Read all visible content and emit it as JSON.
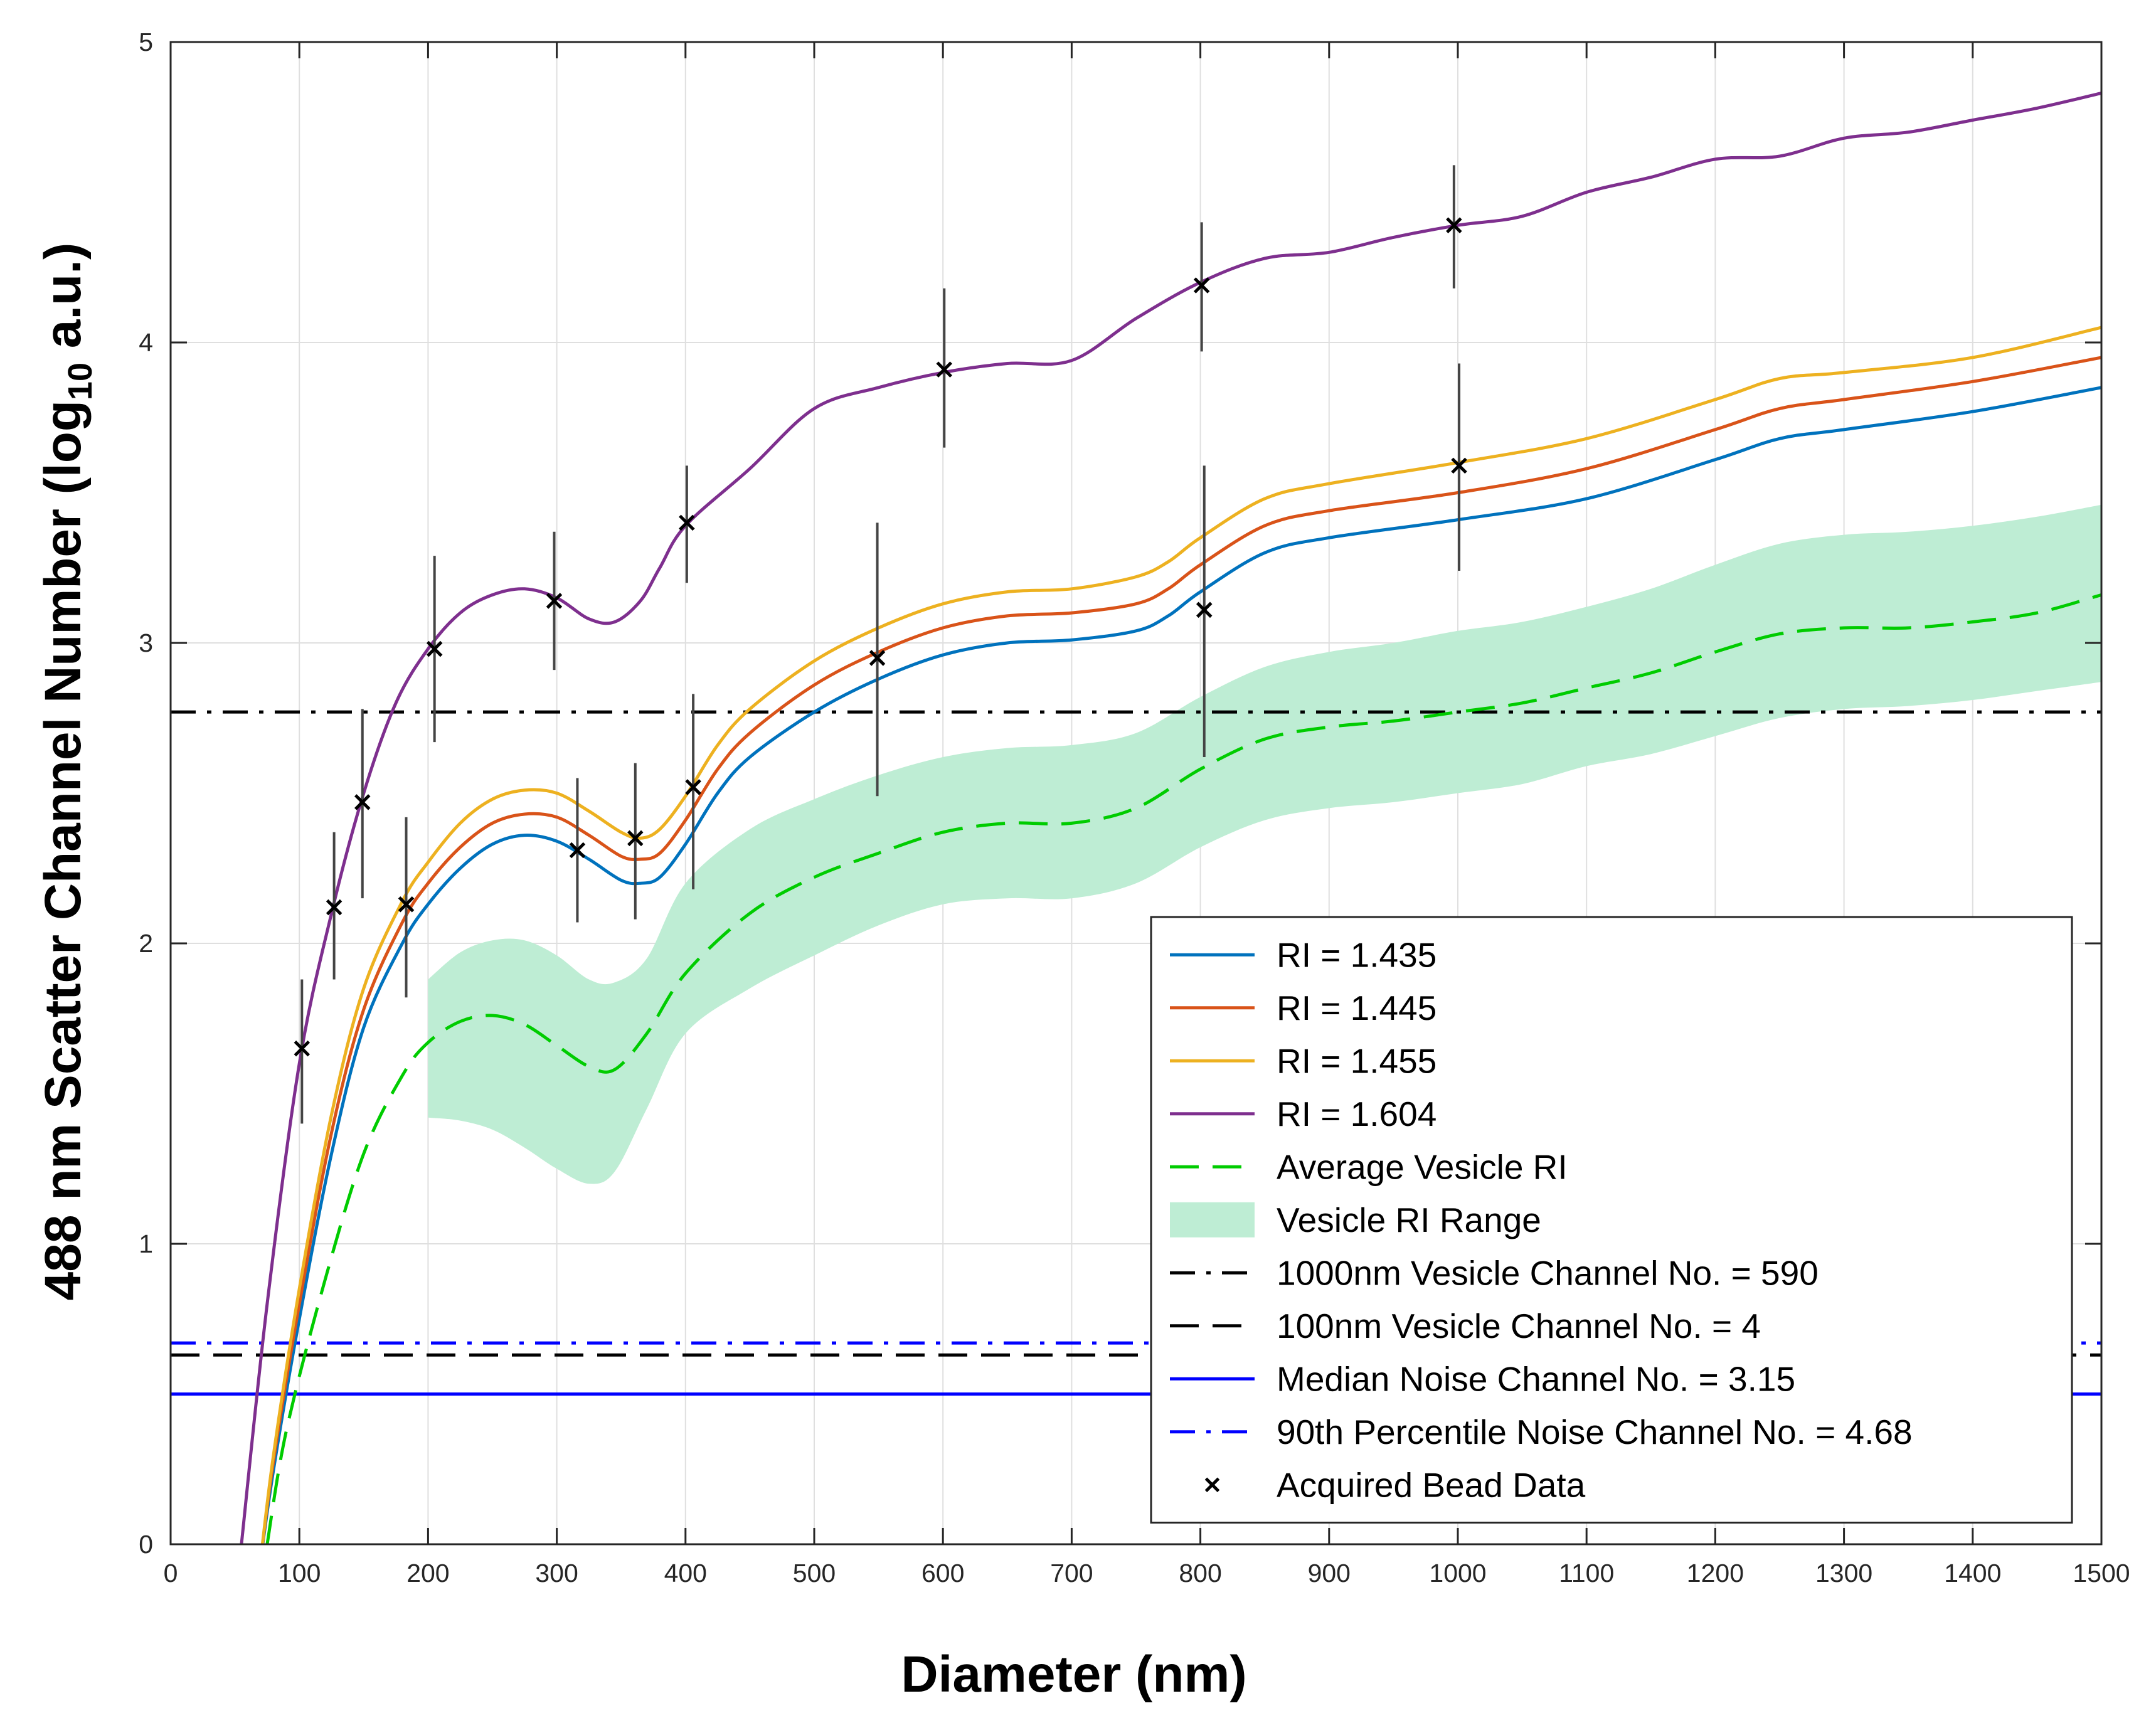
{
  "chart_data": {
    "type": "line",
    "title": "",
    "xlabel": "Diameter (nm)",
    "ylabel_prefix": "488 nm Scatter Channel Number (log",
    "ylabel_sub": "10",
    "ylabel_suffix": " a.u.)",
    "xlim": [
      0,
      1500
    ],
    "ylim": [
      0,
      5
    ],
    "xticks": [
      0,
      100,
      200,
      300,
      400,
      500,
      600,
      700,
      800,
      900,
      1000,
      1100,
      1200,
      1300,
      1400,
      1500
    ],
    "yticks": [
      0,
      1,
      2,
      3,
      4,
      5
    ],
    "grid": true,
    "legend_position": "bottom-right",
    "series": [
      {
        "name": "RI = 1.435",
        "color": "#0072BD",
        "style": "solid",
        "x": [
          70,
          80,
          100,
          125,
          150,
          180,
          200,
          225,
          250,
          275,
          300,
          325,
          350,
          365,
          380,
          400,
          425,
          450,
          500,
          550,
          600,
          650,
          700,
          750,
          775,
          800,
          850,
          900,
          1000,
          1100,
          1200,
          1250,
          1300,
          1400,
          1500
        ],
        "y": [
          -0.05,
          0.25,
          0.75,
          1.3,
          1.72,
          2.0,
          2.13,
          2.25,
          2.33,
          2.36,
          2.34,
          2.28,
          2.21,
          2.2,
          2.22,
          2.33,
          2.5,
          2.62,
          2.77,
          2.88,
          2.96,
          3.0,
          3.01,
          3.04,
          3.09,
          3.17,
          3.3,
          3.35,
          3.41,
          3.48,
          3.61,
          3.68,
          3.71,
          3.77,
          3.85
        ]
      },
      {
        "name": "RI = 1.445",
        "color": "#D95319",
        "style": "solid",
        "x": [
          70,
          80,
          100,
          125,
          150,
          180,
          200,
          225,
          250,
          275,
          300,
          325,
          350,
          365,
          380,
          400,
          425,
          450,
          500,
          550,
          600,
          650,
          700,
          750,
          775,
          800,
          850,
          900,
          1000,
          1100,
          1200,
          1250,
          1300,
          1400,
          1500
        ],
        "y": [
          -0.05,
          0.28,
          0.8,
          1.37,
          1.78,
          2.07,
          2.2,
          2.32,
          2.4,
          2.43,
          2.42,
          2.36,
          2.29,
          2.28,
          2.3,
          2.41,
          2.58,
          2.7,
          2.86,
          2.97,
          3.05,
          3.09,
          3.1,
          3.13,
          3.18,
          3.26,
          3.39,
          3.44,
          3.5,
          3.58,
          3.71,
          3.78,
          3.81,
          3.87,
          3.95
        ]
      },
      {
        "name": "RI = 1.455",
        "color": "#EDB120",
        "style": "solid",
        "x": [
          70,
          80,
          100,
          125,
          150,
          180,
          200,
          225,
          250,
          275,
          300,
          325,
          350,
          365,
          380,
          400,
          425,
          450,
          500,
          550,
          600,
          650,
          700,
          750,
          775,
          800,
          850,
          900,
          1000,
          1100,
          1200,
          1250,
          1300,
          1400,
          1500
        ],
        "y": [
          -0.05,
          0.3,
          0.85,
          1.43,
          1.85,
          2.14,
          2.27,
          2.4,
          2.48,
          2.51,
          2.5,
          2.44,
          2.37,
          2.35,
          2.38,
          2.49,
          2.66,
          2.78,
          2.94,
          3.05,
          3.13,
          3.17,
          3.18,
          3.22,
          3.27,
          3.35,
          3.48,
          3.53,
          3.6,
          3.68,
          3.81,
          3.88,
          3.9,
          3.95,
          4.05
        ]
      },
      {
        "name": "RI = 1.604",
        "color": "#7E2F8E",
        "style": "solid",
        "x": [
          55,
          75,
          100,
          125,
          150,
          175,
          200,
          225,
          250,
          275,
          300,
          325,
          345,
          365,
          380,
          400,
          450,
          500,
          550,
          600,
          650,
          700,
          750,
          800,
          850,
          900,
          950,
          1000,
          1050,
          1100,
          1150,
          1200,
          1250,
          1300,
          1350,
          1400,
          1450,
          1500
        ],
        "y": [
          0.0,
          0.8,
          1.6,
          2.1,
          2.5,
          2.8,
          2.98,
          3.1,
          3.16,
          3.18,
          3.15,
          3.08,
          3.07,
          3.14,
          3.25,
          3.39,
          3.58,
          3.78,
          3.85,
          3.9,
          3.93,
          3.94,
          4.08,
          4.2,
          4.28,
          4.3,
          4.35,
          4.39,
          4.42,
          4.5,
          4.55,
          4.61,
          4.62,
          4.68,
          4.7,
          4.74,
          4.78,
          4.83
        ]
      },
      {
        "name": "Average Vesicle RI",
        "color": "#00CC00",
        "style": "dashed",
        "x": [
          75,
          90,
          120,
          150,
          180,
          200,
          225,
          250,
          275,
          300,
          325,
          345,
          370,
          400,
          450,
          500,
          550,
          600,
          650,
          700,
          750,
          800,
          850,
          900,
          950,
          1000,
          1050,
          1100,
          1150,
          1200,
          1250,
          1300,
          1350,
          1400,
          1450,
          1500
        ],
        "y": [
          0.0,
          0.38,
          0.88,
          1.3,
          1.56,
          1.67,
          1.74,
          1.76,
          1.73,
          1.66,
          1.59,
          1.58,
          1.7,
          1.9,
          2.1,
          2.22,
          2.3,
          2.37,
          2.4,
          2.4,
          2.45,
          2.58,
          2.68,
          2.72,
          2.74,
          2.77,
          2.8,
          2.85,
          2.9,
          2.97,
          3.03,
          3.05,
          3.05,
          3.07,
          3.1,
          3.16
        ]
      }
    ],
    "band": {
      "name": "Vesicle RI Range",
      "color": "#BEEDD4",
      "x": [
        200,
        225,
        250,
        275,
        300,
        325,
        345,
        370,
        400,
        450,
        500,
        550,
        600,
        650,
        700,
        750,
        800,
        850,
        900,
        950,
        1000,
        1050,
        1100,
        1150,
        1200,
        1250,
        1300,
        1350,
        1400,
        1450,
        1500
      ],
      "upper": [
        1.88,
        1.97,
        2.01,
        2.01,
        1.96,
        1.88,
        1.87,
        1.95,
        2.2,
        2.38,
        2.48,
        2.56,
        2.62,
        2.65,
        2.66,
        2.7,
        2.82,
        2.92,
        2.97,
        3.0,
        3.04,
        3.07,
        3.12,
        3.18,
        3.26,
        3.33,
        3.36,
        3.37,
        3.39,
        3.42,
        3.46
      ],
      "lower": [
        1.42,
        1.41,
        1.38,
        1.32,
        1.25,
        1.2,
        1.24,
        1.45,
        1.7,
        1.85,
        1.96,
        2.06,
        2.13,
        2.15,
        2.15,
        2.2,
        2.32,
        2.41,
        2.45,
        2.47,
        2.5,
        2.53,
        2.59,
        2.63,
        2.69,
        2.75,
        2.78,
        2.79,
        2.81,
        2.84,
        2.87
      ]
    },
    "hlines": [
      {
        "name": "1000nm Vesicle Channel No. = 590",
        "y": 2.77,
        "color": "#000000",
        "style": "dashdot"
      },
      {
        "name": "100nm Vesicle Channel No. = 4",
        "y": 0.63,
        "color": "#000000",
        "style": "dashed"
      },
      {
        "name": "Median Noise Channel No. = 3.15",
        "y": 0.5,
        "color": "#0000FF",
        "style": "solid"
      },
      {
        "name": "90th Percentile Noise Channel No. = 4.68",
        "y": 0.67,
        "color": "#0000FF",
        "style": "dashdot"
      }
    ],
    "beads": {
      "name": "Acquired Bead Data",
      "points": [
        {
          "x": 102,
          "y": 1.65,
          "lo": 1.4,
          "hi": 1.88
        },
        {
          "x": 127,
          "y": 2.12,
          "lo": 1.88,
          "hi": 2.37
        },
        {
          "x": 149,
          "y": 2.47,
          "lo": 2.15,
          "hi": 2.78
        },
        {
          "x": 183,
          "y": 2.13,
          "lo": 1.82,
          "hi": 2.42
        },
        {
          "x": 205,
          "y": 2.98,
          "lo": 2.67,
          "hi": 3.29
        },
        {
          "x": 298,
          "y": 3.14,
          "lo": 2.91,
          "hi": 3.37
        },
        {
          "x": 316,
          "y": 2.31,
          "lo": 2.07,
          "hi": 2.55
        },
        {
          "x": 361,
          "y": 2.35,
          "lo": 2.08,
          "hi": 2.6
        },
        {
          "x": 401,
          "y": 3.4,
          "lo": 3.2,
          "hi": 3.59
        },
        {
          "x": 406,
          "y": 2.52,
          "lo": 2.18,
          "hi": 2.83
        },
        {
          "x": 549,
          "y": 2.95,
          "lo": 2.49,
          "hi": 3.4
        },
        {
          "x": 601,
          "y": 3.91,
          "lo": 3.65,
          "hi": 4.18
        },
        {
          "x": 801,
          "y": 4.19,
          "lo": 3.97,
          "hi": 4.4
        },
        {
          "x": 803,
          "y": 3.11,
          "lo": 2.62,
          "hi": 3.59
        },
        {
          "x": 997,
          "y": 4.39,
          "lo": 4.18,
          "hi": 4.59
        },
        {
          "x": 1001,
          "y": 3.59,
          "lo": 3.24,
          "hi": 3.93
        }
      ]
    },
    "legend": [
      {
        "label": "RI = 1.435",
        "kind": "line",
        "color": "#0072BD",
        "style": "solid"
      },
      {
        "label": "RI = 1.445",
        "kind": "line",
        "color": "#D95319",
        "style": "solid"
      },
      {
        "label": "RI = 1.455",
        "kind": "line",
        "color": "#EDB120",
        "style": "solid"
      },
      {
        "label": "RI = 1.604",
        "kind": "line",
        "color": "#7E2F8E",
        "style": "solid"
      },
      {
        "label": "Average Vesicle RI",
        "kind": "line",
        "color": "#00CC00",
        "style": "dashed"
      },
      {
        "label": "Vesicle RI Range",
        "kind": "patch",
        "color": "#BEEDD4",
        "style": "solid"
      },
      {
        "label": "1000nm Vesicle Channel No. = 590",
        "kind": "line",
        "color": "#000000",
        "style": "dashdot"
      },
      {
        "label": "100nm Vesicle Channel No. = 4",
        "kind": "line",
        "color": "#000000",
        "style": "dashed"
      },
      {
        "label": "Median Noise Channel No. = 3.15",
        "kind": "line",
        "color": "#0000FF",
        "style": "solid"
      },
      {
        "label": "90th Percentile Noise Channel No. = 4.68",
        "kind": "line",
        "color": "#0000FF",
        "style": "dashdot"
      },
      {
        "label": "Acquired Bead Data",
        "kind": "marker",
        "color": "#000000",
        "style": "x"
      }
    ]
  }
}
